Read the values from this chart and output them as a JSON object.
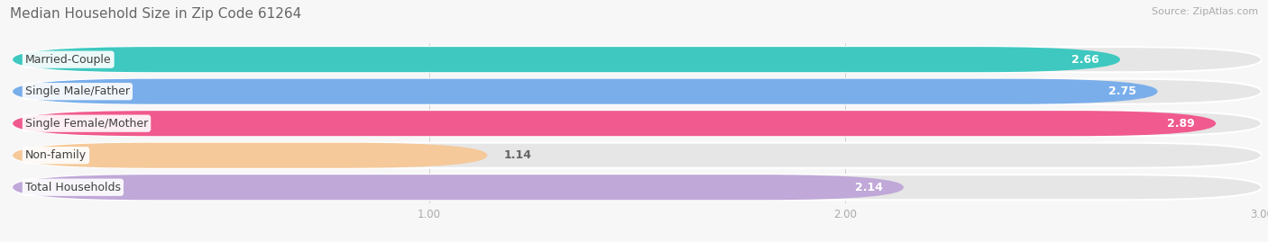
{
  "title": "Median Household Size in Zip Code 61264",
  "source": "Source: ZipAtlas.com",
  "categories": [
    "Married-Couple",
    "Single Male/Father",
    "Single Female/Mother",
    "Non-family",
    "Total Households"
  ],
  "values": [
    2.66,
    2.75,
    2.89,
    1.14,
    2.14
  ],
  "bar_colors": [
    "#3ec8c0",
    "#7aaeea",
    "#f05a8e",
    "#f5c99a",
    "#c0a8d8"
  ],
  "bg_color": "#f7f7f7",
  "bar_bg_color": "#e6e6e6",
  "xlim_min": 0.0,
  "xlim_max": 3.0,
  "xticks": [
    1.0,
    2.0,
    3.0
  ],
  "title_fontsize": 11,
  "source_fontsize": 8,
  "label_fontsize": 9,
  "value_fontsize": 9
}
